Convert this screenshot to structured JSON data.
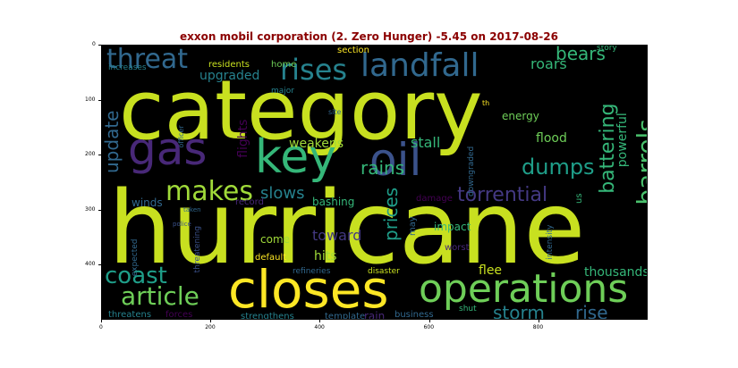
{
  "title": "exxon mobil corporation (2. Zero Hunger) -5.45 on 2017-08-26",
  "axes": {
    "xticks": [
      "0",
      "200",
      "400",
      "600",
      "800"
    ],
    "yticks": [
      "0",
      "100",
      "200",
      "300",
      "400"
    ]
  },
  "words": [
    {
      "text": "category",
      "color": "#c8e020"
    },
    {
      "text": "hurricane",
      "color": "#c8e020"
    },
    {
      "text": "gas",
      "color": "#482878"
    },
    {
      "text": "oil",
      "color": "#3b528b"
    },
    {
      "text": "key",
      "color": "#35b779"
    },
    {
      "text": "closes",
      "color": "#fde725"
    },
    {
      "text": "operations",
      "color": "#6ece58"
    },
    {
      "text": "landfall",
      "color": "#31688e"
    },
    {
      "text": "rises",
      "color": "#26828e"
    },
    {
      "text": "threat",
      "color": "#31688e"
    },
    {
      "text": "makes",
      "color": "#a0da39"
    },
    {
      "text": "barrels",
      "color": "#4ac16d"
    },
    {
      "text": "battering",
      "color": "#35b779"
    },
    {
      "text": "dumps",
      "color": "#1f9e89"
    },
    {
      "text": "article",
      "color": "#6ece58"
    },
    {
      "text": "coast",
      "color": "#1f9e89"
    },
    {
      "text": "update",
      "color": "#31688e"
    },
    {
      "text": "rains",
      "color": "#35b779"
    },
    {
      "text": "torrential",
      "color": "#443983"
    },
    {
      "text": "prices",
      "color": "#1f9e89"
    },
    {
      "text": "storm",
      "color": "#26828e"
    },
    {
      "text": "rise",
      "color": "#31688e"
    },
    {
      "text": "slows",
      "color": "#26828e"
    },
    {
      "text": "bears",
      "color": "#35b779"
    },
    {
      "text": "roars",
      "color": "#35b779"
    },
    {
      "text": "upgraded",
      "color": "#26828e"
    },
    {
      "text": "powerful",
      "color": "#35b779"
    },
    {
      "text": "flights",
      "color": "#440154"
    },
    {
      "text": "weakens",
      "color": "#a0da39"
    },
    {
      "text": "stall",
      "color": "#35b779"
    },
    {
      "text": "flood",
      "color": "#6ece58"
    },
    {
      "text": "energy",
      "color": "#6ece58"
    },
    {
      "text": "toward",
      "color": "#443983"
    },
    {
      "text": "hits",
      "color": "#a0da39"
    },
    {
      "text": "come",
      "color": "#a0da39"
    },
    {
      "text": "bashing",
      "color": "#35b779"
    },
    {
      "text": "winds",
      "color": "#31688e"
    },
    {
      "text": "flee",
      "color": "#c8e020"
    },
    {
      "text": "thousands",
      "color": "#35b779"
    },
    {
      "text": "section",
      "color": "#fde725"
    },
    {
      "text": "residents",
      "color": "#c8e020"
    },
    {
      "text": "home",
      "color": "#6ece58"
    },
    {
      "text": "increases",
      "color": "#26828e"
    },
    {
      "text": "major",
      "color": "#26828e"
    },
    {
      "text": "site",
      "color": "#31688e"
    },
    {
      "text": "officer",
      "color": "#31688e"
    },
    {
      "text": "th",
      "color": "#fde725"
    },
    {
      "text": "downgraded",
      "color": "#31688e"
    },
    {
      "text": "story",
      "color": "#35b779"
    },
    {
      "text": "us",
      "color": "#35b779"
    },
    {
      "text": "record",
      "color": "#482878"
    },
    {
      "text": "police",
      "color": "#3b528b"
    },
    {
      "text": "damage",
      "color": "#440154"
    },
    {
      "text": "taken",
      "color": "#31688e"
    },
    {
      "text": "may",
      "color": "#31688e"
    },
    {
      "text": "impact",
      "color": "#35b779"
    },
    {
      "text": "intensity",
      "color": "#31688e"
    },
    {
      "text": "worst",
      "color": "#482878"
    },
    {
      "text": "expected",
      "color": "#31688e"
    },
    {
      "text": "threatening",
      "color": "#3b528b"
    },
    {
      "text": "default",
      "color": "#fde725"
    },
    {
      "text": "refineries",
      "color": "#31688e"
    },
    {
      "text": "disaster",
      "color": "#c8e020"
    },
    {
      "text": "strengthens",
      "color": "#26828e"
    },
    {
      "text": "template",
      "color": "#31688e"
    },
    {
      "text": "rain",
      "color": "#482878"
    },
    {
      "text": "business",
      "color": "#31688e"
    },
    {
      "text": "threatens",
      "color": "#26828e"
    },
    {
      "text": "forces",
      "color": "#440154"
    },
    {
      "text": "shut",
      "color": "#35b779"
    }
  ]
}
